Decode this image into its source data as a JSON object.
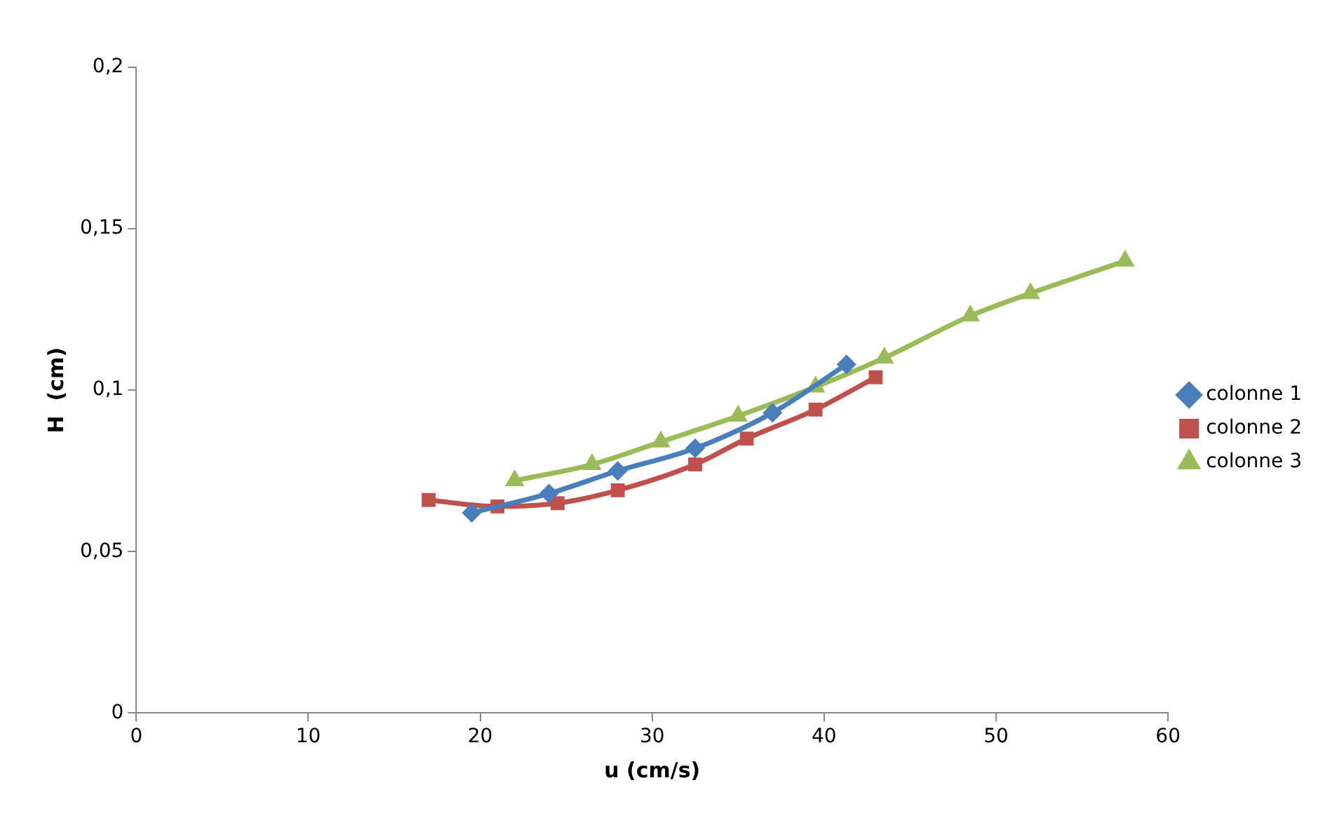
{
  "chart_data": {
    "type": "line",
    "xlabel": "u (cm/s)",
    "ylabel": "H  (cm)",
    "xlim": [
      0,
      60
    ],
    "xticks": [
      0,
      10,
      20,
      30,
      40,
      50,
      60
    ],
    "ylim": [
      0,
      0.2
    ],
    "yticks": [
      {
        "value": 0,
        "label": "0"
      },
      {
        "value": 0.05,
        "label": "0,05"
      },
      {
        "value": 0.1,
        "label": "0,1"
      },
      {
        "value": 0.15,
        "label": "0,15"
      },
      {
        "value": 0.2,
        "label": "0,2"
      }
    ],
    "grid": false,
    "legend": "right",
    "series": [
      {
        "name": "colonne 1",
        "color": "#4a7ebb",
        "marker": "diamond",
        "x": [
          19.5,
          24,
          28,
          32.5,
          37,
          41.3
        ],
        "values": [
          0.062,
          0.068,
          0.075,
          0.082,
          0.093,
          0.108
        ]
      },
      {
        "name": "colonne 2",
        "color": "#c0504d",
        "marker": "square",
        "x": [
          17,
          21,
          24.5,
          28,
          32.5,
          35.5,
          39.5,
          43
        ],
        "values": [
          0.066,
          0.064,
          0.065,
          0.069,
          0.077,
          0.085,
          0.094,
          0.104
        ]
      },
      {
        "name": "colonne 3",
        "color": "#9bbb59",
        "marker": "triangle",
        "x": [
          22,
          26.5,
          30.5,
          35,
          39.5,
          43.5,
          48.5,
          52,
          57.5
        ],
        "values": [
          0.072,
          0.077,
          0.084,
          0.092,
          0.101,
          0.11,
          0.123,
          0.13,
          0.14
        ]
      }
    ]
  }
}
